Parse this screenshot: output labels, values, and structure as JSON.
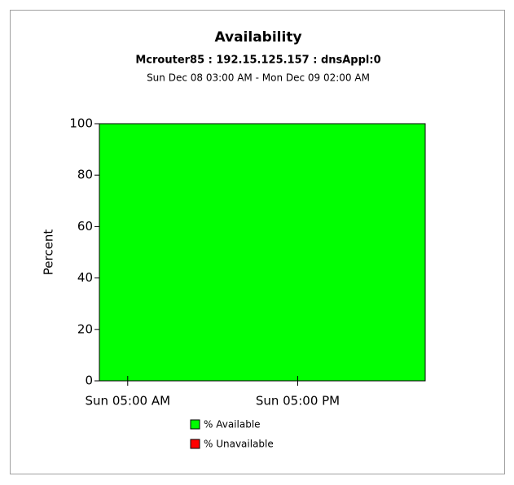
{
  "chart_data": {
    "type": "area",
    "title": "Availability",
    "subtitle": "Mcrouter85 : 192.15.125.157 : dnsAppl:0",
    "date_range": "Sun Dec 08 03:00 AM - Mon Dec 09 02:00 AM",
    "ylabel": "Percent",
    "x": [
      3,
      26
    ],
    "xlim": [
      3,
      26
    ],
    "xticks": [
      {
        "value": 5,
        "label": "Sun 05:00 AM"
      },
      {
        "value": 17,
        "label": "Sun 05:00 PM"
      }
    ],
    "ylim": [
      0,
      100
    ],
    "yticks": [
      0,
      20,
      40,
      60,
      80,
      100
    ],
    "stacked": true,
    "series": [
      {
        "name": "% Available",
        "color": "#00ff00",
        "values": [
          100,
          100
        ]
      },
      {
        "name": "% Unavailable",
        "color": "#ff0000",
        "values": [
          0,
          0
        ]
      }
    ]
  }
}
